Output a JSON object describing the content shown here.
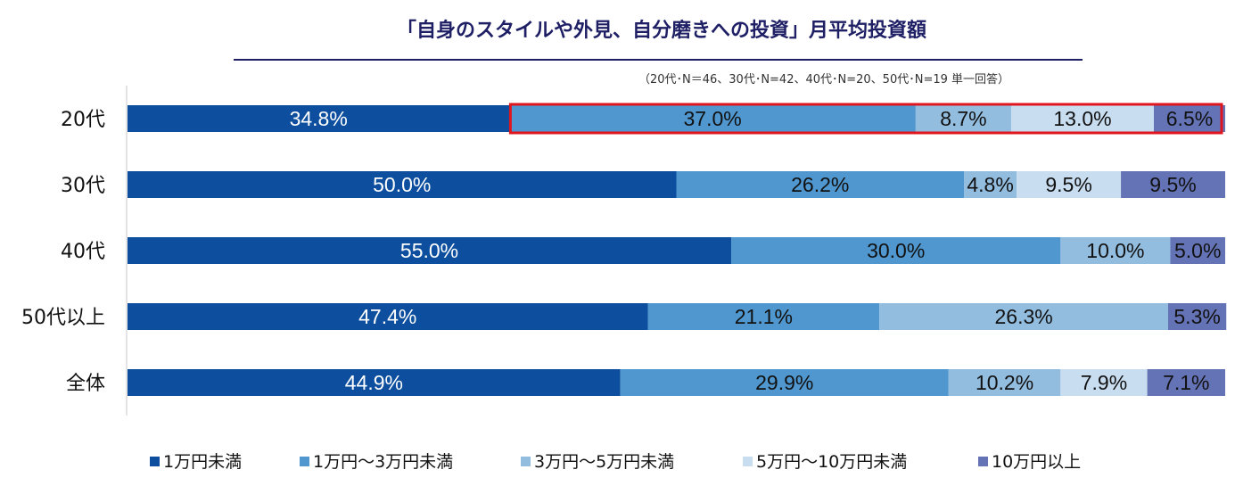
{
  "chart_data": {
    "type": "bar",
    "orientation": "horizontal",
    "stacked": true,
    "percent_stacked": true,
    "title": "「自身のスタイルや外見、自分磨きへの投資」月平均投資額",
    "subtitle": "（20代･N＝46、30代･N=42、40代･N=20、50代･N=19 単一回答）",
    "categories": [
      "20代",
      "30代",
      "40代",
      "50代以上",
      "全体"
    ],
    "series": [
      {
        "name": "1万円未満",
        "color": "#0d4f9e",
        "label_color": "#ffffff",
        "values": [
          34.8,
          50.0,
          55.0,
          47.4,
          44.9
        ],
        "labels": [
          "34.8%",
          "50.0%",
          "55.0%",
          "47.4%",
          "44.9%"
        ]
      },
      {
        "name": "1万円～3万円未満",
        "color": "#4f97ce",
        "label_color": "#111111",
        "values": [
          37.0,
          26.2,
          30.0,
          21.1,
          29.9
        ],
        "labels": [
          "37.0%",
          "26.2%",
          "30.0%",
          "21.1%",
          "29.9%"
        ]
      },
      {
        "name": "3万円～5万円未満",
        "color": "#93bddf",
        "label_color": "#111111",
        "values": [
          8.7,
          4.8,
          10.0,
          26.3,
          10.2
        ],
        "labels": [
          "8.7%",
          "4.8%",
          "10.0%",
          "26.3%",
          "10.2%"
        ]
      },
      {
        "name": "5万円～10万円未満",
        "color": "#c9ddf0",
        "label_color": "#111111",
        "values": [
          13.0,
          9.5,
          0,
          0,
          7.9
        ],
        "labels": [
          "13.0%",
          "9.5%",
          "",
          "",
          "7.9%"
        ]
      },
      {
        "name": "10万円以上",
        "color": "#6473b5",
        "label_color": "#111111",
        "values": [
          6.5,
          9.5,
          5.0,
          5.3,
          7.1
        ],
        "labels": [
          "6.5%",
          "9.5%",
          "5.0%",
          "5.3%",
          "7.1%"
        ]
      }
    ],
    "xlim": [
      0,
      100
    ],
    "grid": false,
    "legend_position": "bottom",
    "highlight": {
      "category": "20代",
      "from_series": "1万円～3万円未満",
      "to_series": "10万円以上",
      "color": "#e0161e"
    },
    "title_underline_color": "#1f1f66"
  }
}
